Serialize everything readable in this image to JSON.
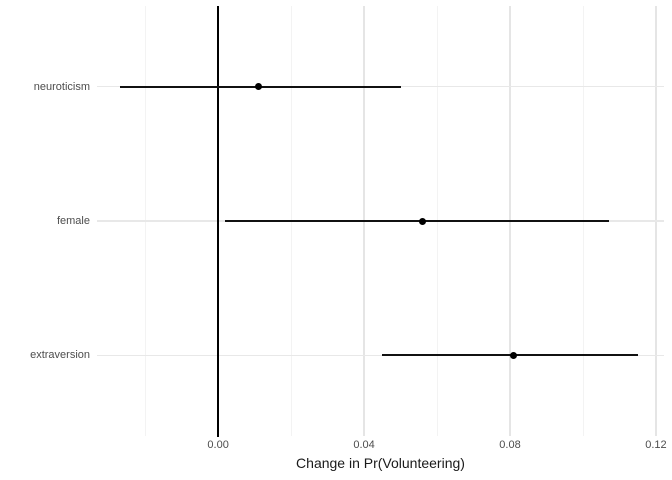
{
  "chart_data": {
    "type": "scatter",
    "subtype": "coefficient-dot-whisker",
    "title": "",
    "xlabel": "Change in Pr(Volunteering)",
    "ylabel": "",
    "categories": [
      "neuroticism",
      "female",
      "extraversion"
    ],
    "points": [
      {
        "label": "neuroticism",
        "estimate": 0.011,
        "ci_low": -0.027,
        "ci_high": 0.05
      },
      {
        "label": "female",
        "estimate": 0.056,
        "ci_low": 0.002,
        "ci_high": 0.107
      },
      {
        "label": "extraversion",
        "estimate": 0.081,
        "ci_low": 0.045,
        "ci_high": 0.115
      }
    ],
    "x_ticks": [
      "0.00",
      "0.04",
      "0.08",
      "0.12"
    ],
    "x_tick_values": [
      0.0,
      0.04,
      0.08,
      0.12
    ],
    "x_minor_values": [
      -0.02,
      0.02,
      0.06,
      0.1
    ],
    "xlim": [
      -0.0332,
      0.1222
    ],
    "reference_line_x": 0,
    "grid": true,
    "legend": false,
    "colors": {
      "point": "#000000",
      "ci_line": "#111111",
      "reference_line": "#000000",
      "grid_major": "#e5e5e5",
      "grid_minor": "#f3f3f3",
      "tick_label": "#4d4d4d",
      "axis_title": "#1a1a1a",
      "background": "#ffffff"
    }
  }
}
